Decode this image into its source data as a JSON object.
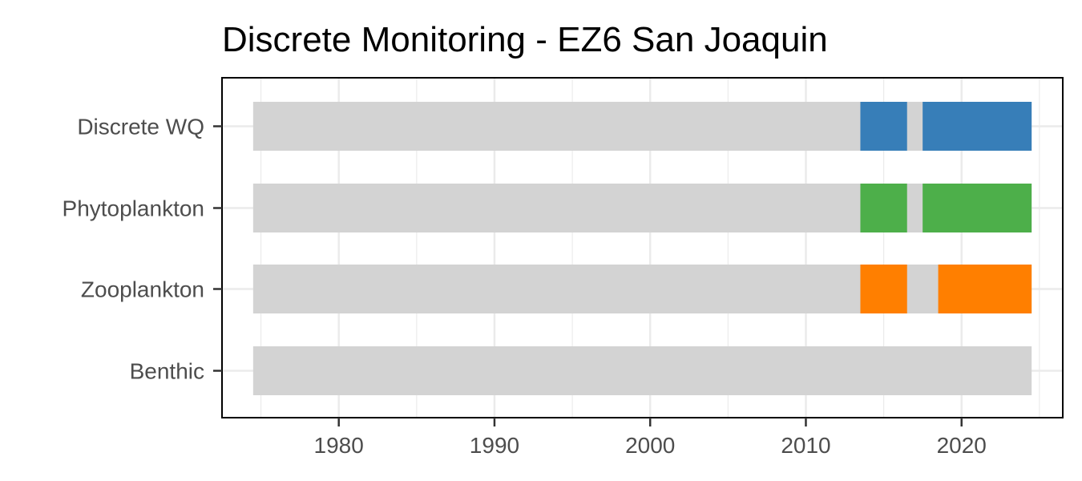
{
  "chart_data": {
    "type": "bar",
    "orientation": "horizontal-timeline",
    "title": "Discrete Monitoring - EZ6 San Joaquin",
    "xlabel": "",
    "ylabel": "",
    "xlim": [
      1972.5,
      2026.5
    ],
    "x_ticks": [
      1980,
      1990,
      2000,
      2010,
      2020
    ],
    "grid": true,
    "legend": "none",
    "background_color": "#d3d3d3",
    "categories": [
      "Discrete WQ",
      "Phytoplankton",
      "Zooplankton",
      "Benthic"
    ],
    "series": [
      {
        "category": "Discrete WQ",
        "color": "#377eb8",
        "range": [
          1974.5,
          2024.5
        ],
        "active_periods": [
          [
            2013.5,
            2016.5
          ],
          [
            2017.5,
            2024.5
          ]
        ]
      },
      {
        "category": "Phytoplankton",
        "color": "#4daf4a",
        "range": [
          1974.5,
          2024.5
        ],
        "active_periods": [
          [
            2013.5,
            2016.5
          ],
          [
            2017.5,
            2024.5
          ]
        ]
      },
      {
        "category": "Zooplankton",
        "color": "#ff7f00",
        "range": [
          1974.5,
          2024.5
        ],
        "active_periods": [
          [
            2013.5,
            2016.5
          ],
          [
            2018.5,
            2024.5
          ]
        ]
      },
      {
        "category": "Benthic",
        "color": "#377eb8",
        "range": [
          1974.5,
          2024.5
        ],
        "active_periods": []
      }
    ]
  }
}
